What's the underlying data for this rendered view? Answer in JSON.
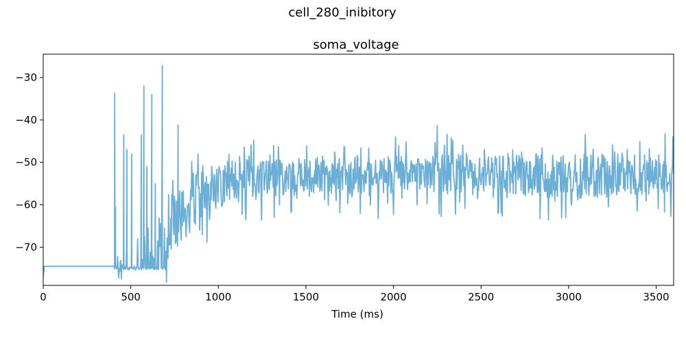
{
  "chart_data": {
    "type": "line",
    "suptitle": "cell_280_inibitory",
    "title": "soma_voltage",
    "xlabel": "Time (ms)",
    "ylabel": "",
    "xlim": [
      0,
      3600
    ],
    "ylim": [
      -79,
      -24.5
    ],
    "xticks": [
      0,
      500,
      1000,
      1500,
      2000,
      2500,
      3000,
      3500
    ],
    "xtick_labels": [
      "0",
      "500",
      "1000",
      "1500",
      "2000",
      "2500",
      "3000",
      "3500"
    ],
    "yticks": [
      -70,
      -60,
      -50,
      -40,
      -30
    ],
    "ytick_labels": [
      "−70",
      "−60",
      "−50",
      "−40",
      "−30"
    ],
    "grid": false,
    "series": [
      {
        "name": "soma_voltage",
        "color": "#6baed6",
        "baseline_mV": -74.5,
        "initial_mV": -77.0,
        "noise_onset_ms": 405,
        "spikes": [
          {
            "t": 408,
            "v": -33.7
          },
          {
            "t": 413,
            "v": -60.5
          },
          {
            "t": 460,
            "v": -43.5
          },
          {
            "t": 478,
            "v": -47.0
          },
          {
            "t": 505,
            "v": -48.0
          },
          {
            "t": 560,
            "v": -43.5
          },
          {
            "t": 575,
            "v": -32.0
          },
          {
            "t": 592,
            "v": -51.0
          },
          {
            "t": 620,
            "v": -34.0
          },
          {
            "t": 640,
            "v": -55.0
          },
          {
            "t": 680,
            "v": -27.2
          },
          {
            "t": 770,
            "v": -41.2
          },
          {
            "t": 2250,
            "v": -41.4
          }
        ],
        "envelope": [
          {
            "t": 405,
            "mean": -74.5,
            "amp": 0.5
          },
          {
            "t": 700,
            "mean": -67.0,
            "amp": 6.0
          },
          {
            "t": 850,
            "mean": -59.0,
            "amp": 7.0
          },
          {
            "t": 1000,
            "mean": -55.0,
            "amp": 5.5
          },
          {
            "t": 1500,
            "mean": -53.0,
            "amp": 4.5
          },
          {
            "t": 2000,
            "mean": -53.0,
            "amp": 4.5
          },
          {
            "t": 2500,
            "mean": -52.5,
            "amp": 4.5
          },
          {
            "t": 3000,
            "mean": -53.5,
            "amp": 5.5
          },
          {
            "t": 3600,
            "mean": -52.5,
            "amp": 4.5
          }
        ]
      }
    ]
  }
}
